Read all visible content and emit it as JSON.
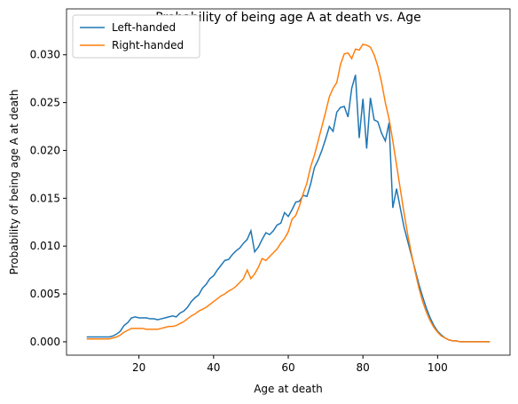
{
  "chart_data": {
    "type": "line",
    "title": "Probability of being age A at death vs. Age",
    "xlabel": "Age at death",
    "ylabel": "Probability of being age A at death",
    "x": [
      6,
      7,
      8,
      9,
      10,
      11,
      12,
      13,
      14,
      15,
      16,
      17,
      18,
      19,
      20,
      21,
      22,
      23,
      24,
      25,
      26,
      27,
      28,
      29,
      30,
      31,
      32,
      33,
      34,
      35,
      36,
      37,
      38,
      39,
      40,
      41,
      42,
      43,
      44,
      45,
      46,
      47,
      48,
      49,
      50,
      51,
      52,
      53,
      54,
      55,
      56,
      57,
      58,
      59,
      60,
      61,
      62,
      63,
      64,
      65,
      66,
      67,
      68,
      69,
      70,
      71,
      72,
      73,
      74,
      75,
      76,
      77,
      78,
      79,
      80,
      81,
      82,
      83,
      84,
      85,
      86,
      87,
      88,
      89,
      90,
      91,
      92,
      93,
      94,
      95,
      96,
      97,
      98,
      99,
      100,
      101,
      102,
      103,
      104,
      105,
      106,
      107,
      108,
      109,
      110,
      111,
      112,
      113,
      114
    ],
    "series": [
      {
        "name": "Left-handed",
        "color": "#1f77b4",
        "values": [
          0.0005,
          0.0005,
          0.0005,
          0.0005,
          0.0005,
          0.0005,
          0.0005,
          0.0006,
          0.0008,
          0.0011,
          0.0017,
          0.002,
          0.0025,
          0.0026,
          0.0025,
          0.0025,
          0.0025,
          0.0024,
          0.0024,
          0.0023,
          0.0024,
          0.0025,
          0.0026,
          0.0027,
          0.0026,
          0.003,
          0.0032,
          0.0036,
          0.0042,
          0.0046,
          0.0049,
          0.0056,
          0.006,
          0.0066,
          0.0069,
          0.0075,
          0.008,
          0.0085,
          0.0086,
          0.0091,
          0.0095,
          0.0098,
          0.0103,
          0.0107,
          0.0116,
          0.0094,
          0.0099,
          0.0107,
          0.0114,
          0.0112,
          0.0116,
          0.0122,
          0.0124,
          0.0135,
          0.0131,
          0.0138,
          0.0146,
          0.0147,
          0.0153,
          0.0152,
          0.0165,
          0.0182,
          0.019,
          0.02,
          0.0212,
          0.0225,
          0.022,
          0.024,
          0.0245,
          0.0246,
          0.0235,
          0.0265,
          0.0279,
          0.0213,
          0.0254,
          0.0202,
          0.0255,
          0.0232,
          0.023,
          0.0218,
          0.021,
          0.0229,
          0.014,
          0.016,
          0.014,
          0.012,
          0.0105,
          0.009,
          0.0075,
          0.006,
          0.0047,
          0.0035,
          0.0025,
          0.0017,
          0.0011,
          0.0007,
          0.0004,
          0.0002,
          0.0001,
          0.0001,
          0,
          0,
          0,
          0,
          0,
          0,
          0,
          0,
          0
        ]
      },
      {
        "name": "Right-handed",
        "color": "#ff7f0e",
        "values": [
          0.0003,
          0.0003,
          0.0003,
          0.0003,
          0.0003,
          0.0003,
          0.0003,
          0.0004,
          0.0005,
          0.0007,
          0.001,
          0.0012,
          0.0014,
          0.0014,
          0.0014,
          0.0014,
          0.0013,
          0.0013,
          0.0013,
          0.0013,
          0.0014,
          0.0015,
          0.0016,
          0.0016,
          0.0017,
          0.0019,
          0.0021,
          0.0024,
          0.0027,
          0.0029,
          0.0032,
          0.0034,
          0.0036,
          0.0039,
          0.0042,
          0.0045,
          0.0048,
          0.005,
          0.0053,
          0.0055,
          0.0058,
          0.0062,
          0.0066,
          0.0075,
          0.0066,
          0.0071,
          0.0078,
          0.0087,
          0.0085,
          0.0089,
          0.0093,
          0.0097,
          0.0103,
          0.0108,
          0.0115,
          0.0128,
          0.0132,
          0.0142,
          0.0155,
          0.0166,
          0.0183,
          0.0195,
          0.021,
          0.0225,
          0.024,
          0.0256,
          0.0265,
          0.0271,
          0.029,
          0.0301,
          0.0302,
          0.0296,
          0.0306,
          0.0305,
          0.0311,
          0.031,
          0.0308,
          0.03,
          0.0288,
          0.0271,
          0.025,
          0.0233,
          0.021,
          0.0185,
          0.016,
          0.0135,
          0.0112,
          0.0092,
          0.0073,
          0.0056,
          0.0042,
          0.0031,
          0.0022,
          0.0015,
          0.001,
          0.0006,
          0.0004,
          0.0002,
          0.0001,
          0.0001,
          0,
          0,
          0,
          0,
          0,
          0,
          0,
          0,
          0
        ]
      }
    ],
    "xlim": [
      0.6,
      119.4
    ],
    "xticks": [
      20,
      40,
      60,
      80,
      100
    ],
    "ylim": [
      -0.0014,
      0.0348
    ],
    "yticks": [
      {
        "value": 0,
        "label": "0.000"
      },
      {
        "value": 0.005,
        "label": "0.005"
      },
      {
        "value": 0.01,
        "label": "0.010"
      },
      {
        "value": 0.015,
        "label": "0.015"
      },
      {
        "value": 0.02,
        "label": "0.020"
      },
      {
        "value": 0.025,
        "label": "0.025"
      },
      {
        "value": 0.03,
        "label": "0.030"
      }
    ],
    "legend": "upper left",
    "grid": false
  }
}
